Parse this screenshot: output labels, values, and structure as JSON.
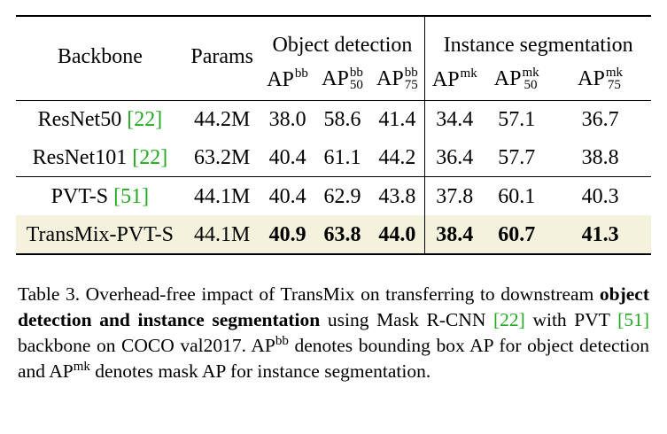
{
  "table": {
    "header": {
      "backbone": "Backbone",
      "params": "Params",
      "group_det": "Object detection",
      "group_seg": "Instance segmentation",
      "ap_base": "AP",
      "cols": [
        {
          "sup": "bb",
          "sub": ""
        },
        {
          "sup": "bb",
          "sub": "50"
        },
        {
          "sup": "bb",
          "sub": "75"
        },
        {
          "sup": "mk",
          "sub": ""
        },
        {
          "sup": "mk",
          "sub": "50"
        },
        {
          "sup": "mk",
          "sub": "75"
        }
      ]
    },
    "rows": [
      {
        "name": "ResNet50 ",
        "cite": "[22]",
        "params": "44.2M",
        "vals": [
          "38.0",
          "58.6",
          "41.4",
          "34.4",
          "57.1",
          "36.7"
        ]
      },
      {
        "name": "ResNet101 ",
        "cite": "[22]",
        "params": "63.2M",
        "vals": [
          "40.4",
          "61.1",
          "44.2",
          "36.4",
          "57.7",
          "38.8"
        ]
      },
      {
        "name": "PVT-S ",
        "cite": "[51]",
        "params": "44.1M",
        "vals": [
          "40.4",
          "62.9",
          "43.8",
          "37.8",
          "60.1",
          "40.3"
        ]
      },
      {
        "name": "TransMix-PVT-S",
        "cite": "",
        "params": "44.1M",
        "vals": [
          "40.9",
          "63.8",
          "44.0",
          "38.4",
          "60.7",
          "41.3"
        ]
      }
    ],
    "highlight_color": "#f4f1dc",
    "cite_color": "#22aa22"
  },
  "caption": {
    "part1": "Table 3. Overhead-free impact of TransMix on transferring to downstream ",
    "bold": "object detection and instance segmentation",
    "part2": " using Mask R-CNN ",
    "cite1": "[22]",
    "part3": " with PVT ",
    "cite2": "[51]",
    "part4": " backbone on COCO val2017. ",
    "ap1": "AP",
    "ap1_sup": "bb",
    "part5": " denotes bounding box AP for object detection and ",
    "ap2": "AP",
    "ap2_sup": "mk",
    "part6": " denotes mask AP for instance segmentation."
  }
}
